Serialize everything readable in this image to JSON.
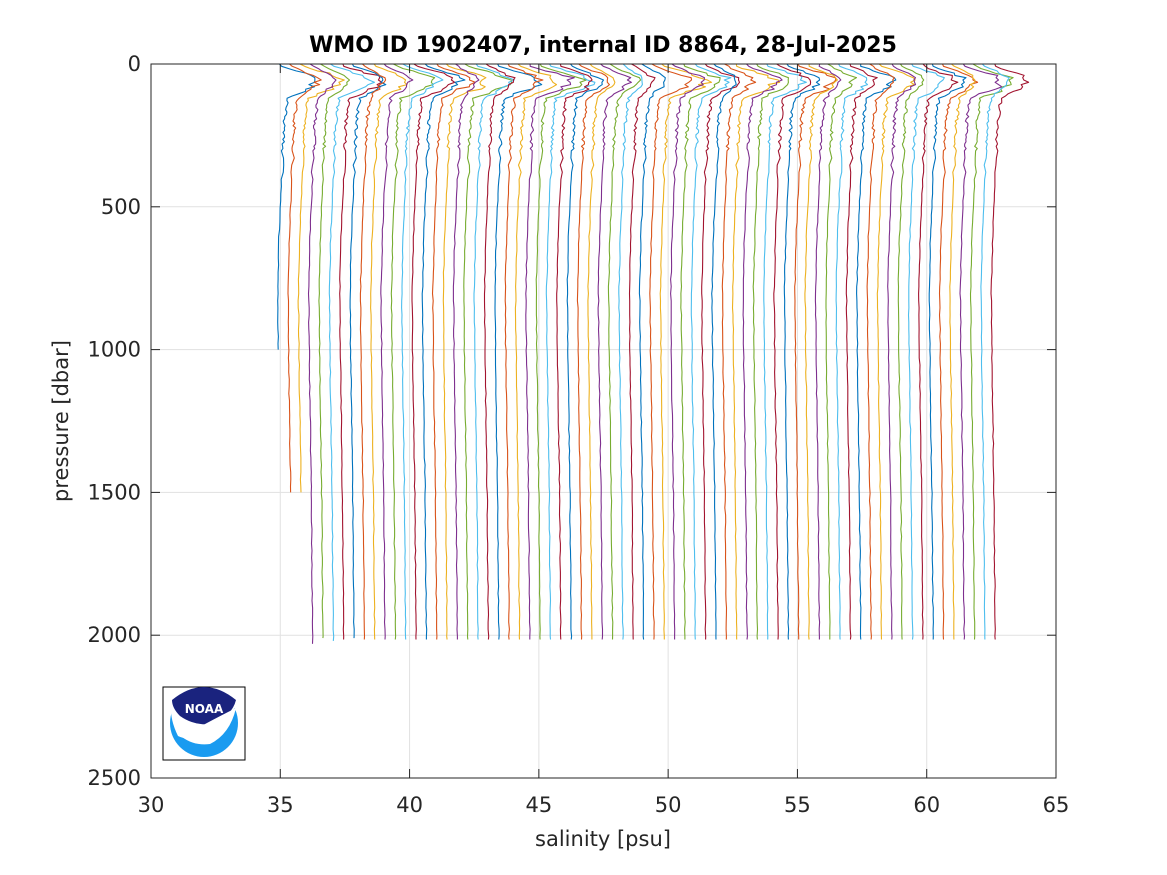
{
  "chart_data": {
    "type": "line",
    "title": "WMO ID 1902407, internal ID 8864, 28-Jul-2025",
    "xlabel": "salinity [psu]",
    "ylabel": "pressure [dbar]",
    "xlim": [
      30,
      65
    ],
    "ylim": [
      0,
      2500
    ],
    "y_reversed": true,
    "grid": true,
    "legend": "none",
    "x_ticks": [
      "30",
      "35",
      "40",
      "45",
      "50",
      "55",
      "60",
      "65"
    ],
    "y_ticks": [
      "0",
      "500",
      "1000",
      "1500",
      "2000",
      "2500"
    ],
    "series_colors": [
      "#0072bd",
      "#d95319",
      "#edb120",
      "#7e2f8e",
      "#77ac30",
      "#4dbeee",
      "#a2142f"
    ],
    "profile_count": 70,
    "profile_offset_step": 0.4,
    "first_profile_surface_salinity": 35.0,
    "profile_shape": {
      "pressure": [
        0,
        50,
        100,
        200,
        300,
        400,
        500,
        600,
        800,
        1000,
        1500,
        2000
      ],
      "salinity_offset": [
        0.0,
        0.6,
        0.3,
        0.15,
        0.1,
        0.05,
        0.0,
        -0.05,
        -0.1,
        -0.08,
        0.0,
        0.05
      ]
    },
    "profile_max_pressure": [
      1000,
      1500,
      1500,
      2030,
      2010,
      2020,
      2015,
      2010
    ],
    "default_max_pressure": 2015
  },
  "logo": {
    "name": "NOAA",
    "text": "NOAA"
  }
}
